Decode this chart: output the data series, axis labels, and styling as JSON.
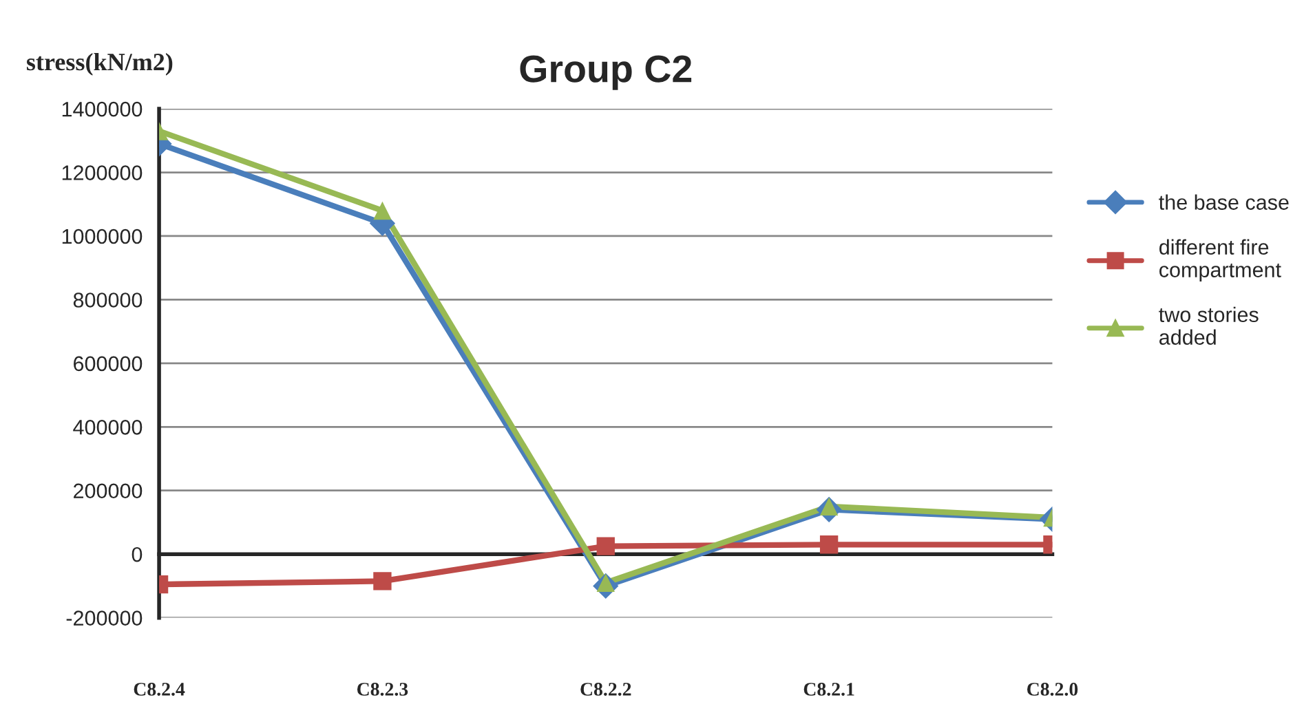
{
  "chart_data": {
    "type": "line",
    "title": "Group C2",
    "ylabel": "stress(kN/m2)",
    "categories": [
      "C8.2.4",
      "C8.2.3",
      "C8.2.2",
      "C8.2.1",
      "C8.2.0"
    ],
    "series": [
      {
        "name": "the base case",
        "color": "#4a7ebb",
        "marker": "diamond",
        "values": [
          1290000,
          1040000,
          -100000,
          140000,
          110000
        ]
      },
      {
        "name": "different fire compartment",
        "color": "#be4b48",
        "marker": "square",
        "values": [
          -95000,
          -85000,
          25000,
          30000,
          30000
        ]
      },
      {
        "name": "two stories added",
        "color": "#98b954",
        "marker": "triangle",
        "values": [
          1330000,
          1080000,
          -90000,
          150000,
          115000
        ]
      }
    ],
    "ylim": [
      -200000,
      1400000
    ],
    "yticks": [
      -200000,
      0,
      200000,
      400000,
      600000,
      800000,
      1000000,
      1200000,
      1400000
    ],
    "grid": "y",
    "legend": "right",
    "line_style": "solid"
  }
}
